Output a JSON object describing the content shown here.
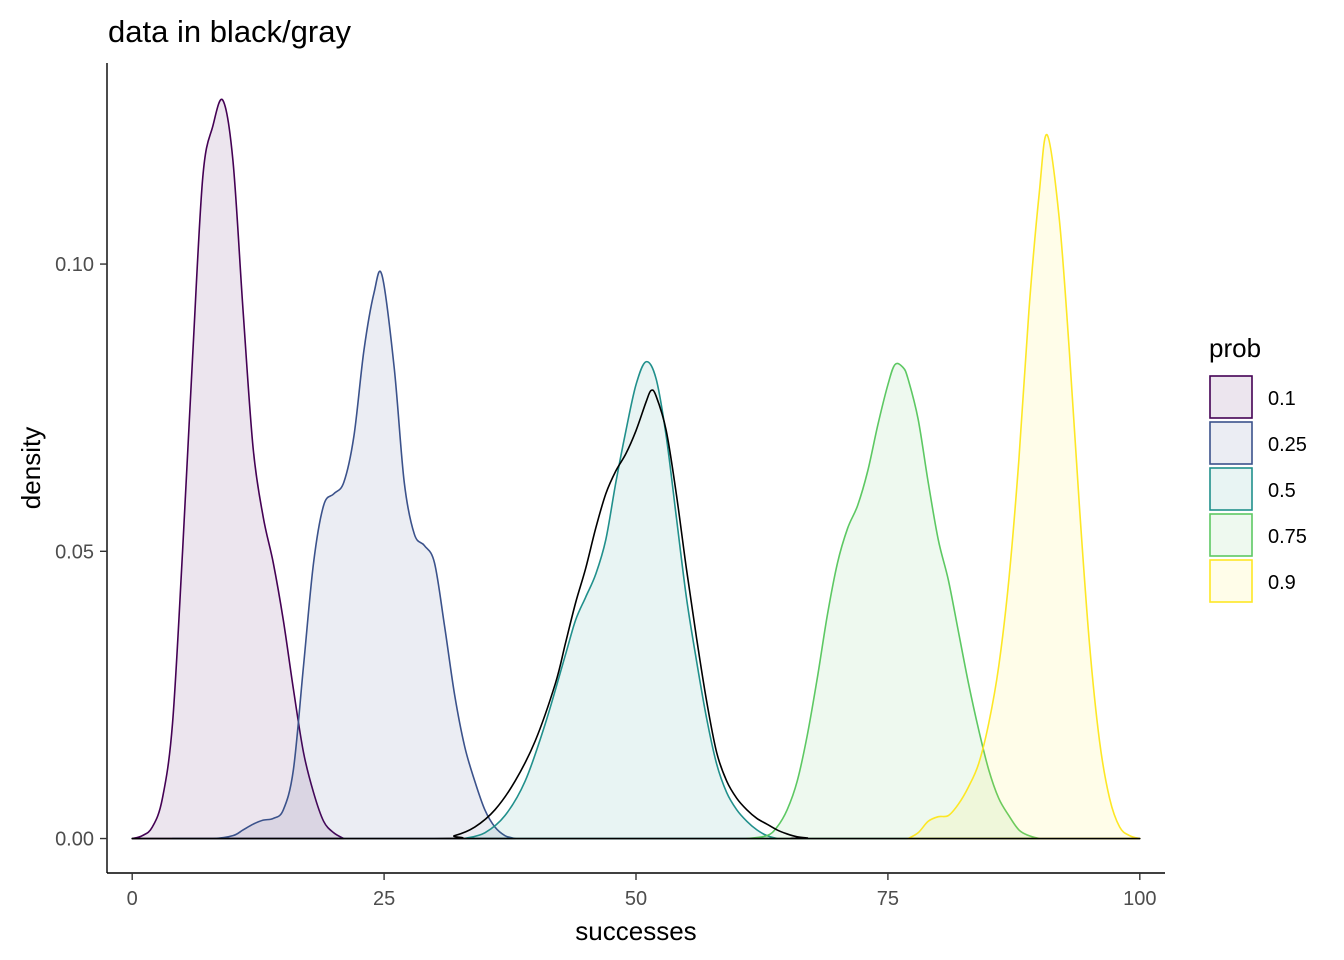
{
  "chart_data": {
    "type": "area",
    "title": "data in black/gray",
    "xlabel": "successes",
    "ylabel": "density",
    "xlim": [
      -2.5,
      102.5
    ],
    "ylim": [
      -0.006,
      0.135
    ],
    "xticks": [
      0,
      25,
      50,
      75,
      100
    ],
    "xtick_labels": [
      "0",
      "25",
      "50",
      "75",
      "100"
    ],
    "yticks": [
      0.0,
      0.05,
      0.1
    ],
    "ytick_labels": [
      "0.00",
      "0.05",
      "0.10"
    ],
    "grid": false,
    "legend": {
      "title": "prob",
      "position": "right"
    },
    "series": [
      {
        "name": "0.1",
        "color": "#440154",
        "fill_opacity": 0.1,
        "x": [
          0,
          1,
          2,
          3,
          4,
          5,
          6,
          7,
          8,
          9,
          10,
          11,
          12,
          13,
          14,
          15,
          16,
          17,
          18,
          19,
          20,
          21
        ],
        "y": [
          0.0,
          0.0005,
          0.002,
          0.007,
          0.02,
          0.05,
          0.084,
          0.115,
          0.124,
          0.1285,
          0.118,
          0.092,
          0.068,
          0.056,
          0.048,
          0.038,
          0.026,
          0.015,
          0.008,
          0.003,
          0.001,
          0.0
        ]
      },
      {
        "name": "0.25",
        "color": "#3b528b",
        "fill_opacity": 0.1,
        "x": [
          4,
          8,
          10,
          11,
          12,
          13,
          14,
          15,
          16,
          17,
          18,
          19,
          20,
          21,
          22,
          23,
          24,
          24.8,
          26,
          27,
          28,
          29,
          30,
          31,
          32,
          33,
          34,
          35,
          36,
          37,
          38
        ],
        "y": [
          0.0,
          0.0,
          0.0005,
          0.0015,
          0.0025,
          0.0032,
          0.0035,
          0.005,
          0.012,
          0.03,
          0.048,
          0.058,
          0.06,
          0.062,
          0.07,
          0.085,
          0.095,
          0.098,
          0.082,
          0.062,
          0.053,
          0.051,
          0.048,
          0.037,
          0.025,
          0.016,
          0.01,
          0.005,
          0.002,
          0.0005,
          0.0
        ]
      },
      {
        "name": "0.5",
        "color": "#21908c",
        "fill_opacity": 0.1,
        "x": [
          33,
          35,
          37,
          39,
          41,
          43,
          44,
          45,
          46,
          47,
          48,
          49,
          50,
          51,
          52,
          53,
          54,
          55,
          56,
          57,
          58,
          59,
          60,
          61,
          62,
          63,
          64
        ],
        "y": [
          0.0,
          0.001,
          0.004,
          0.01,
          0.02,
          0.032,
          0.038,
          0.042,
          0.046,
          0.052,
          0.062,
          0.071,
          0.079,
          0.083,
          0.08,
          0.07,
          0.056,
          0.042,
          0.031,
          0.021,
          0.013,
          0.008,
          0.005,
          0.003,
          0.0015,
          0.0005,
          0.0
        ]
      },
      {
        "name": "0.75",
        "color": "#5dc863",
        "fill_opacity": 0.1,
        "x": [
          61,
          63,
          64,
          65,
          66,
          67,
          68,
          69,
          70,
          71,
          72,
          73,
          74,
          75,
          75.7,
          76.5,
          77,
          78,
          79,
          80,
          81,
          82,
          83,
          84,
          85,
          86,
          87,
          88,
          89,
          90
        ],
        "y": [
          0.0,
          0.0005,
          0.002,
          0.005,
          0.01,
          0.018,
          0.028,
          0.039,
          0.048,
          0.054,
          0.058,
          0.064,
          0.072,
          0.079,
          0.0825,
          0.082,
          0.08,
          0.073,
          0.062,
          0.052,
          0.045,
          0.036,
          0.027,
          0.019,
          0.012,
          0.007,
          0.004,
          0.0015,
          0.0005,
          0.0
        ]
      },
      {
        "name": "0.9",
        "color": "#fde725",
        "fill_opacity": 0.1,
        "x": [
          77,
          78,
          79,
          80,
          81,
          82,
          83,
          84,
          85,
          86,
          87,
          88,
          89,
          90,
          90.8,
          92,
          93,
          94,
          95,
          96,
          97,
          98,
          99,
          100
        ],
        "y": [
          0.0,
          0.001,
          0.003,
          0.0038,
          0.004,
          0.006,
          0.009,
          0.013,
          0.02,
          0.03,
          0.045,
          0.066,
          0.092,
          0.112,
          0.1225,
          0.108,
          0.085,
          0.058,
          0.034,
          0.017,
          0.007,
          0.002,
          0.0005,
          0.0
        ]
      },
      {
        "name": "data",
        "color": "#000000",
        "fill_opacity": 0.0,
        "in_legend": false,
        "x": [
          0,
          30,
          32,
          34,
          36,
          38,
          40,
          42,
          43,
          44,
          45,
          46,
          47,
          48,
          49,
          50,
          51,
          51.5,
          52,
          53,
          54,
          55,
          56,
          57,
          58,
          59,
          60,
          61,
          62,
          63,
          64,
          65,
          66,
          67,
          68,
          100
        ],
        "y": [
          0.0,
          0.0,
          0.0005,
          0.002,
          0.005,
          0.01,
          0.017,
          0.027,
          0.034,
          0.041,
          0.047,
          0.054,
          0.06,
          0.064,
          0.067,
          0.071,
          0.076,
          0.078,
          0.077,
          0.071,
          0.06,
          0.047,
          0.035,
          0.024,
          0.015,
          0.01,
          0.007,
          0.005,
          0.0035,
          0.0025,
          0.0015,
          0.0008,
          0.0003,
          0.0001,
          0.0,
          0.0
        ]
      }
    ]
  }
}
